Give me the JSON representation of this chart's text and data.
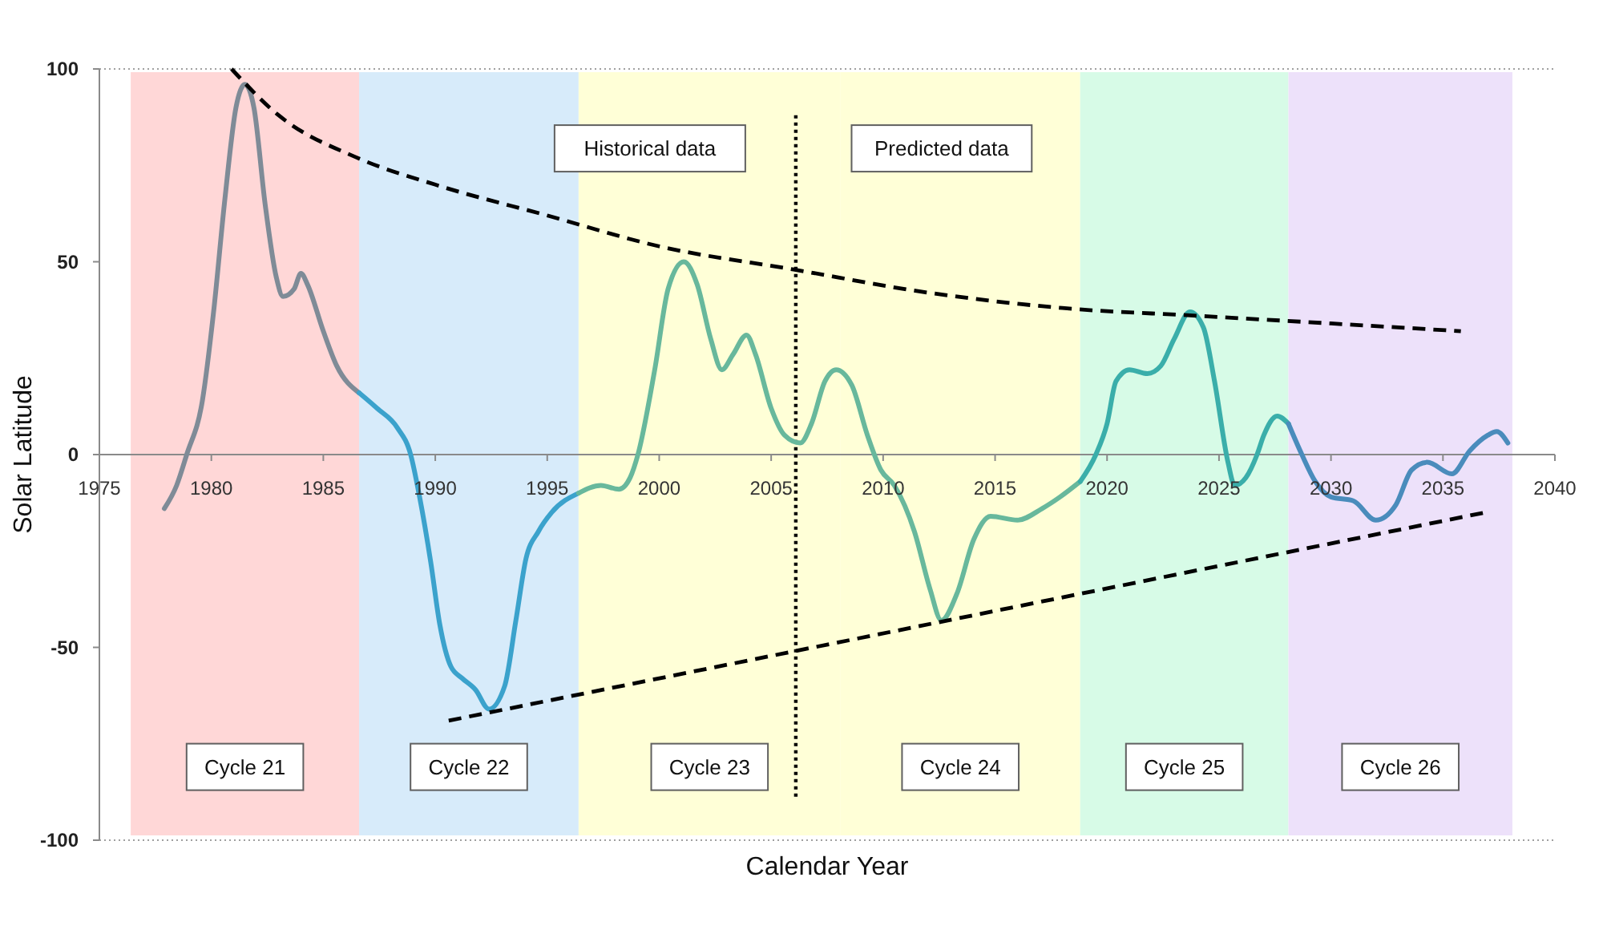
{
  "chart_data": {
    "type": "line",
    "xlabel": "Calendar Year",
    "ylabel": "Solar Latitude",
    "xlim": [
      1975,
      2040
    ],
    "ylim": [
      -100,
      100
    ],
    "xticks": [
      1975,
      1980,
      1985,
      1990,
      1995,
      2000,
      2005,
      2010,
      2015,
      2020,
      2025,
      2030,
      2035,
      2040
    ],
    "yticks": [
      -100,
      -50,
      0,
      50,
      100
    ],
    "bands": [
      {
        "axis": "x",
        "from": 1976.4,
        "to": 1986.6,
        "label": "Cycle 21",
        "color": "#ffd7d7"
      },
      {
        "axis": "x",
        "from": 1986.6,
        "to": 1996.4,
        "label": "Cycle 22",
        "color": "#d7ebfa"
      },
      {
        "axis": "x",
        "from": 1996.4,
        "to": 2008.1,
        "label": "Cycle 23",
        "color": "#ffffd7"
      },
      {
        "axis": "x",
        "from": 2008.1,
        "to": 2018.8,
        "label": "Cycle 24",
        "color": "#ffffd7"
      },
      {
        "axis": "x",
        "from": 2018.8,
        "to": 2028.1,
        "label": "Cycle 25",
        "color": "#d7fbe7"
      },
      {
        "axis": "x",
        "from": 2028.1,
        "to": 2038.1,
        "label": "Cycle 26",
        "color": "#ede1fa"
      }
    ],
    "ref_lines": [
      {
        "axis": "x",
        "value": 2006.1,
        "color": "#000000",
        "line_style": "dotted"
      }
    ],
    "annotations": [
      "Historical data",
      "Predicted data"
    ],
    "series": [
      {
        "color": "#7f8b97",
        "x": [
          1977.9,
          1978.45,
          1978.9,
          1979.6,
          1980.1,
          1980.6,
          1981.1,
          1981.5,
          1981.9,
          1982.4,
          1982.9,
          1983.2,
          1983.7,
          1984.0,
          1984.3,
          1985.0,
          1985.6,
          1986.6
        ],
        "values": [
          -14,
          -8,
          0,
          14,
          37,
          66,
          90,
          96,
          90,
          65,
          46,
          41,
          43,
          47,
          44,
          32,
          23,
          16
        ]
      },
      {
        "color": "#3ba2cc",
        "x": [
          1986.6,
          1987.4,
          1988.3,
          1988.9,
          1989.3,
          1989.8,
          1990.2,
          1990.7,
          1991.2,
          1991.8,
          1992.4,
          1993.1,
          1993.6,
          1994.05,
          1994.6,
          1995.2,
          1996.4
        ],
        "values": [
          16,
          12,
          7,
          0,
          -11,
          -28,
          -44,
          -55,
          -58,
          -61,
          -66,
          -60,
          -43,
          -27,
          -20,
          -15,
          -10
        ]
      },
      {
        "color": "#68b89c",
        "x": [
          1996.4,
          1997.4,
          1998.2,
          1998.7,
          1999.05,
          1999.8,
          2000.4,
          2001.1,
          2001.7,
          2002.3,
          2002.8,
          2003.3,
          2003.9,
          2004.3,
          2005.0,
          2005.6,
          2006.3,
          2006.8,
          2007.4,
          2007.9,
          2008.6,
          2009.3,
          2009.9,
          2010.5,
          2011.4,
          2012.1,
          2012.6,
          2013.3,
          2014.05,
          2014.8,
          2016.0,
          2017.1,
          2017.9,
          2018.8
        ],
        "values": [
          -10,
          -8,
          -9,
          -6,
          0,
          22,
          43,
          50,
          44,
          30,
          22,
          26,
          31,
          26,
          12,
          5,
          3,
          8,
          19,
          22,
          18,
          5,
          -4,
          -8,
          -20,
          -35,
          -43,
          -36,
          -22,
          -16,
          -17,
          -14,
          -11,
          -7
        ]
      },
      {
        "color": "#3aaeaa",
        "x": [
          2018.8,
          2019.5,
          2020.0,
          2020.4,
          2021.0,
          2021.8,
          2022.4,
          2023.0,
          2023.7,
          2024.3,
          2024.8,
          2025.4,
          2025.7,
          2026.2,
          2026.7,
          2027.0,
          2027.6,
          2028.1
        ],
        "values": [
          -7,
          0,
          8,
          19,
          22,
          21,
          23,
          30,
          37,
          33,
          19,
          -2,
          -8,
          -6,
          0,
          5,
          10,
          8
        ]
      },
      {
        "color": "#4a8cbc",
        "x": [
          2028.1,
          2028.7,
          2029.3,
          2030.0,
          2031.0,
          2032.0,
          2032.9,
          2033.6,
          2034.3,
          2035.4,
          2036.2,
          2037.0,
          2037.4,
          2037.9
        ],
        "values": [
          8,
          0,
          -7,
          -11,
          -12,
          -17,
          -13,
          -4,
          -2,
          -5,
          1,
          5,
          6,
          3
        ]
      },
      {
        "color": "#000000",
        "line_style": "dashed",
        "x": [
          1980.9,
          1983,
          1986.5,
          1990,
          1995,
          2000,
          2006,
          2012,
          2018,
          2024,
          2030,
          2035.8
        ],
        "values": [
          100,
          88,
          77,
          70,
          62,
          54,
          48,
          42,
          38,
          36,
          34,
          32
        ]
      },
      {
        "color": "#000000",
        "line_style": "dashed",
        "x": [
          1990.6,
          2036.9
        ],
        "values": [
          -69,
          -15
        ]
      }
    ]
  }
}
